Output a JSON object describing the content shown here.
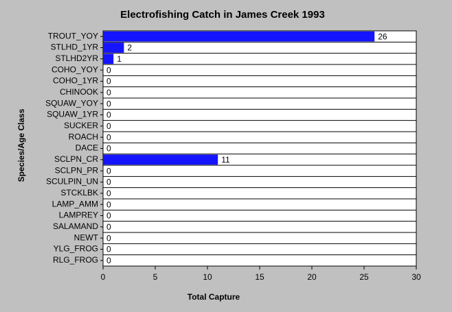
{
  "chart_data": {
    "type": "hbar",
    "title": "Electrofishing Catch in James Creek 1993",
    "x_label": "Total Capture",
    "y_label": "Species/Age Class",
    "categories": [
      "TROUT_YOY",
      "STLHD_1YR",
      "STLHD2YR",
      "COHO_YOY",
      "COHO_1YR",
      "CHINOOK",
      "SQUAW_YOY",
      "SQUAW_1YR",
      "SUCKER",
      "ROACH",
      "DACE",
      "SCLPN_CR",
      "SCLPN_PR",
      "SCULPIN_UN",
      "STCKLBK",
      "LAMP_AMM",
      "LAMPREY",
      "SALAMAND",
      "NEWT",
      "YLG_FROG",
      "RLG_FROG"
    ],
    "values": [
      26,
      2,
      1,
      0,
      0,
      0,
      0,
      0,
      0,
      0,
      0,
      11,
      0,
      0,
      0,
      0,
      0,
      0,
      0,
      0,
      0
    ],
    "color": "#1414ff",
    "xlim": [
      0,
      30
    ],
    "xticks": [
      0,
      5,
      10,
      15,
      20,
      25,
      30
    ]
  }
}
